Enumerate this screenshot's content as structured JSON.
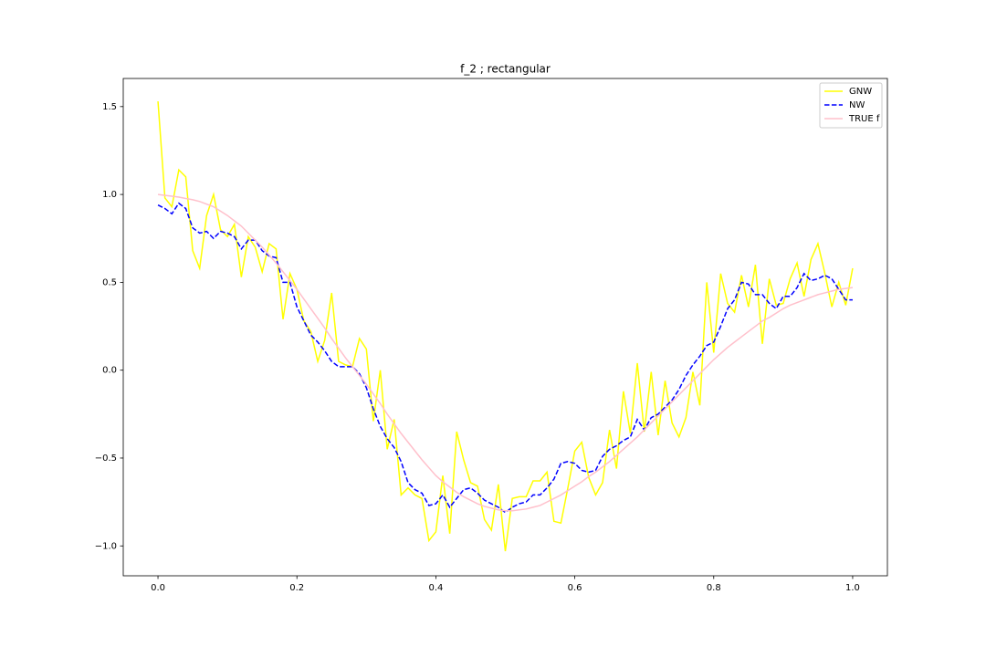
{
  "chart_data": {
    "type": "line",
    "title": "f_2 ; rectangular",
    "x": [
      0,
      0.01,
      0.02,
      0.03,
      0.04,
      0.05,
      0.06,
      0.07,
      0.08,
      0.09,
      0.1,
      0.11,
      0.12,
      0.13,
      0.14,
      0.15,
      0.16,
      0.17,
      0.18,
      0.19,
      0.2,
      0.21,
      0.22,
      0.23,
      0.24,
      0.25,
      0.26,
      0.27,
      0.28,
      0.29,
      0.3,
      0.31,
      0.32,
      0.33,
      0.34,
      0.35,
      0.36,
      0.37,
      0.38,
      0.39,
      0.4,
      0.41,
      0.42,
      0.43,
      0.44,
      0.45,
      0.46,
      0.47,
      0.48,
      0.49,
      0.5,
      0.51,
      0.52,
      0.53,
      0.54,
      0.55,
      0.56,
      0.57,
      0.58,
      0.59,
      0.6,
      0.61,
      0.62,
      0.63,
      0.64,
      0.65,
      0.66,
      0.67,
      0.68,
      0.69,
      0.7,
      0.71,
      0.72,
      0.73,
      0.74,
      0.75,
      0.76,
      0.77,
      0.78,
      0.79,
      0.8,
      0.81,
      0.82,
      0.83,
      0.84,
      0.85,
      0.86,
      0.87,
      0.88,
      0.89,
      0.9,
      0.91,
      0.92,
      0.93,
      0.94,
      0.95,
      0.96,
      0.97,
      0.98,
      0.99,
      1
    ],
    "series": [
      {
        "name": "GNW",
        "color": "#ffff00",
        "linestyle": "solid",
        "values": [
          1.53,
          0.98,
          0.93,
          1.14,
          1.1,
          0.68,
          0.58,
          0.88,
          1.0,
          0.8,
          0.76,
          0.83,
          0.53,
          0.76,
          0.7,
          0.56,
          0.72,
          0.69,
          0.29,
          0.55,
          0.46,
          0.28,
          0.22,
          0.05,
          0.17,
          0.44,
          0.05,
          0.03,
          0.02,
          0.18,
          0.12,
          -0.29,
          0.0,
          -0.45,
          -0.28,
          -0.71,
          -0.67,
          -0.71,
          -0.73,
          -0.97,
          -0.92,
          -0.6,
          -0.93,
          -0.35,
          -0.51,
          -0.64,
          -0.66,
          -0.85,
          -0.91,
          -0.65,
          -1.03,
          -0.73,
          -0.72,
          -0.72,
          -0.63,
          -0.63,
          -0.58,
          -0.86,
          -0.87,
          -0.67,
          -0.46,
          -0.41,
          -0.61,
          -0.71,
          -0.64,
          -0.34,
          -0.56,
          -0.12,
          -0.36,
          0.04,
          -0.35,
          -0.01,
          -0.37,
          -0.06,
          -0.3,
          -0.38,
          -0.27,
          -0.01,
          -0.2,
          0.5,
          0.1,
          0.55,
          0.38,
          0.33,
          0.54,
          0.36,
          0.6,
          0.15,
          0.52,
          0.37,
          0.38,
          0.52,
          0.61,
          0.42,
          0.63,
          0.72,
          0.55,
          0.36,
          0.5,
          0.37,
          0.58
        ]
      },
      {
        "name": "NW",
        "color": "#0000ff",
        "linestyle": "dashed",
        "values": [
          0.94,
          0.92,
          0.89,
          0.95,
          0.92,
          0.81,
          0.78,
          0.79,
          0.75,
          0.79,
          0.78,
          0.76,
          0.69,
          0.74,
          0.74,
          0.68,
          0.65,
          0.64,
          0.5,
          0.5,
          0.36,
          0.28,
          0.2,
          0.16,
          0.11,
          0.05,
          0.02,
          0.02,
          0.02,
          -0.02,
          -0.1,
          -0.22,
          -0.32,
          -0.39,
          -0.44,
          -0.52,
          -0.64,
          -0.68,
          -0.7,
          -0.77,
          -0.76,
          -0.71,
          -0.78,
          -0.73,
          -0.68,
          -0.67,
          -0.7,
          -0.74,
          -0.76,
          -0.78,
          -0.81,
          -0.78,
          -0.76,
          -0.75,
          -0.71,
          -0.71,
          -0.67,
          -0.62,
          -0.53,
          -0.52,
          -0.53,
          -0.57,
          -0.58,
          -0.57,
          -0.49,
          -0.45,
          -0.43,
          -0.4,
          -0.38,
          -0.28,
          -0.34,
          -0.27,
          -0.25,
          -0.21,
          -0.17,
          -0.11,
          -0.03,
          0.03,
          0.08,
          0.14,
          0.16,
          0.25,
          0.35,
          0.4,
          0.5,
          0.49,
          0.43,
          0.43,
          0.38,
          0.35,
          0.42,
          0.42,
          0.47,
          0.55,
          0.51,
          0.52,
          0.54,
          0.52,
          0.46,
          0.4,
          0.4
        ]
      },
      {
        "name": "TRUE f",
        "color": "#ffc0cb",
        "linestyle": "solid",
        "values": [
          1.0,
          0.995,
          0.99,
          0.985,
          0.977,
          0.97,
          0.96,
          0.945,
          0.93,
          0.905,
          0.88,
          0.85,
          0.82,
          0.78,
          0.74,
          0.7,
          0.655,
          0.61,
          0.56,
          0.51,
          0.46,
          0.405,
          0.35,
          0.295,
          0.24,
          0.18,
          0.125,
          0.07,
          0.02,
          -0.03,
          -0.08,
          -0.135,
          -0.19,
          -0.25,
          -0.305,
          -0.36,
          -0.41,
          -0.46,
          -0.51,
          -0.555,
          -0.6,
          -0.635,
          -0.665,
          -0.695,
          -0.72,
          -0.74,
          -0.76,
          -0.775,
          -0.785,
          -0.795,
          -0.8,
          -0.8,
          -0.795,
          -0.79,
          -0.78,
          -0.77,
          -0.75,
          -0.73,
          -0.71,
          -0.685,
          -0.66,
          -0.635,
          -0.605,
          -0.58,
          -0.55,
          -0.52,
          -0.485,
          -0.45,
          -0.415,
          -0.38,
          -0.34,
          -0.3,
          -0.26,
          -0.22,
          -0.18,
          -0.14,
          -0.1,
          -0.06,
          -0.02,
          0.02,
          0.06,
          0.095,
          0.13,
          0.16,
          0.19,
          0.22,
          0.25,
          0.28,
          0.3,
          0.325,
          0.35,
          0.37,
          0.385,
          0.4,
          0.415,
          0.43,
          0.44,
          0.45,
          0.46,
          0.465,
          0.47
        ]
      }
    ],
    "xlim": [
      -0.05,
      1.05
    ],
    "ylim": [
      -1.17,
      1.66
    ],
    "xticks": [
      {
        "value": 0,
        "label": "0.0"
      },
      0.2,
      0.4,
      0.6,
      0.8,
      {
        "value": 1,
        "label": "1.0"
      }
    ],
    "yticks": [
      {
        "value": -1,
        "label": "−1.0"
      },
      {
        "value": -0.5,
        "label": "−0.5"
      },
      {
        "value": 0,
        "label": "0.0"
      },
      0.5,
      {
        "value": 1,
        "label": "1.0"
      },
      1.5
    ],
    "grid": false,
    "legend": "upper right"
  }
}
